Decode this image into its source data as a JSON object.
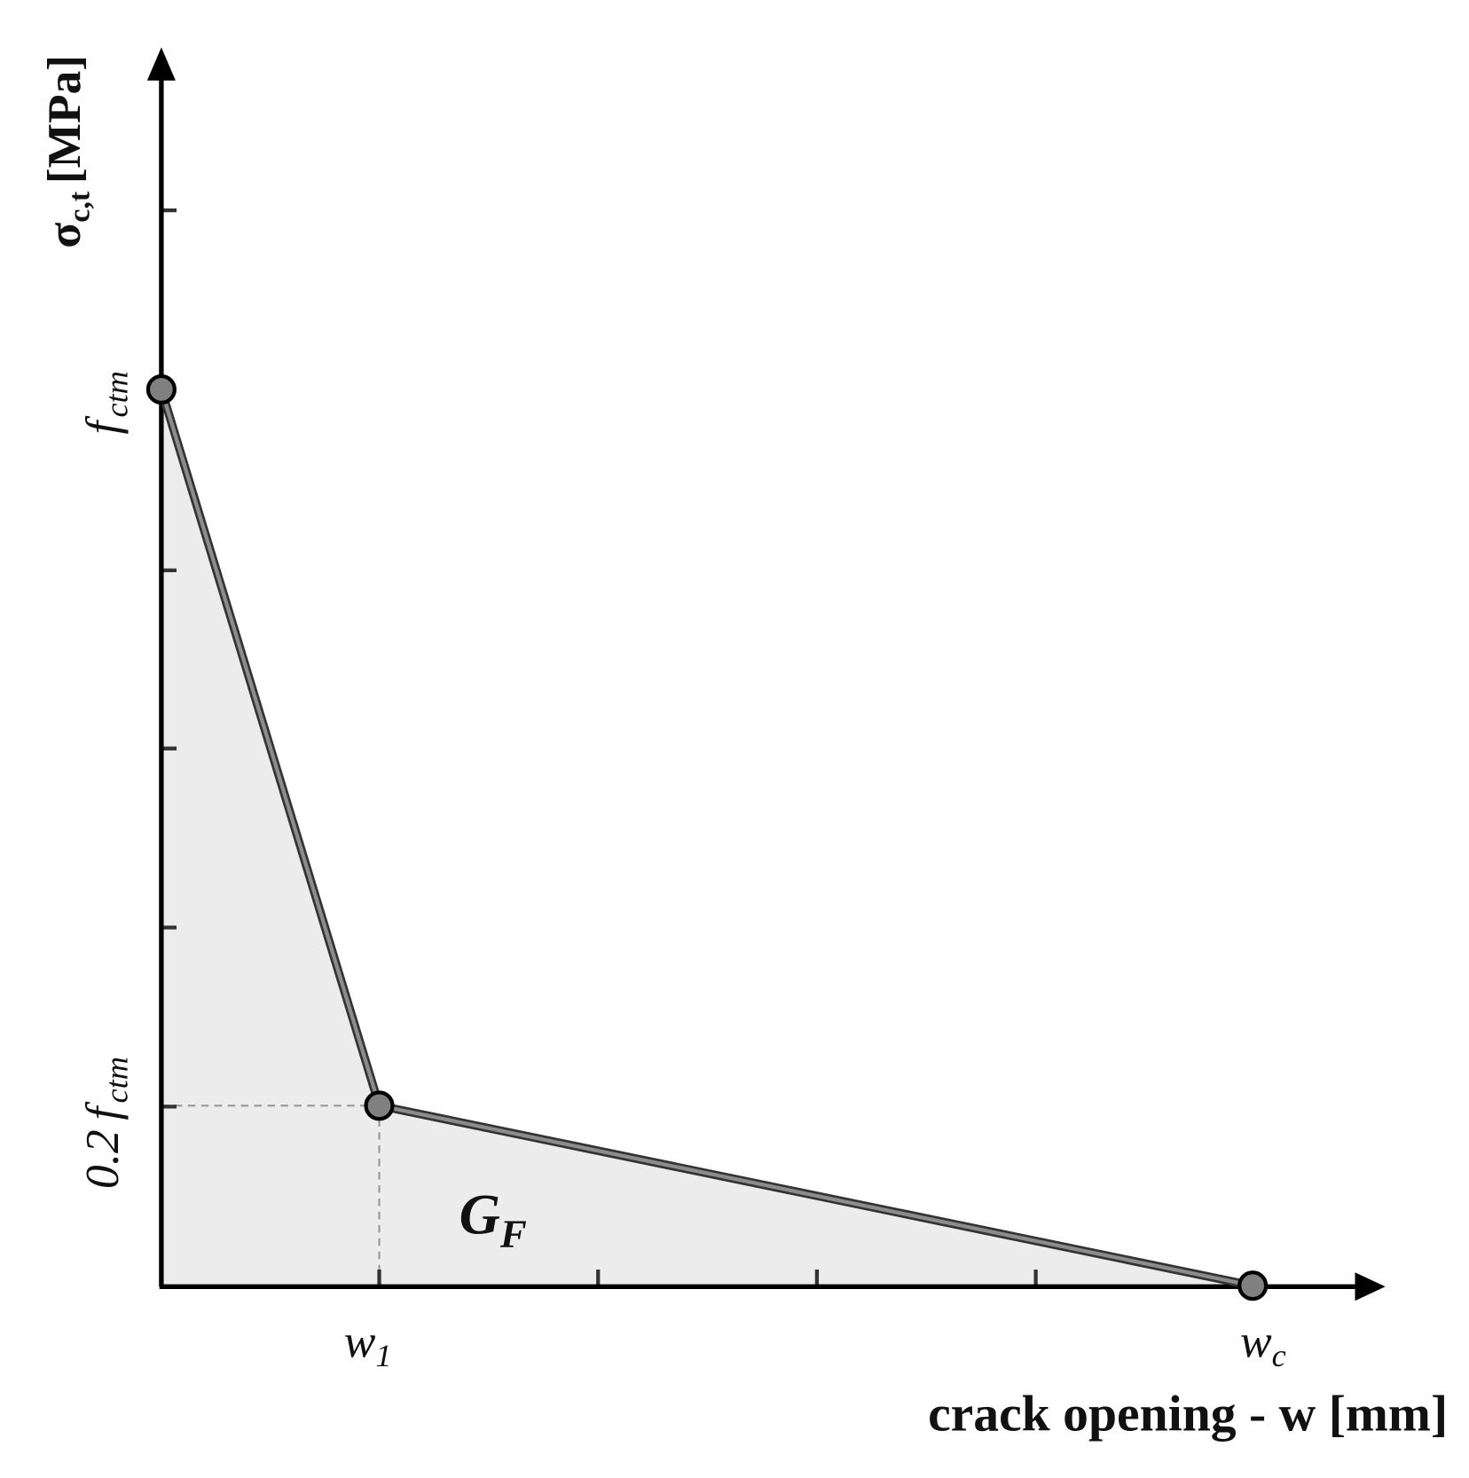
{
  "y_axis": {
    "symbol": "σ",
    "subscript": "c,t",
    "unit": "[MPa]"
  },
  "x_axis": {
    "label": "crack opening - w [mm]"
  },
  "y_labels": [
    {
      "symbol": "f",
      "subscript": "ctm"
    },
    {
      "factor": "0.2",
      "symbol": "f",
      "subscript": "ctm"
    }
  ],
  "x_labels": [
    {
      "symbol": "w",
      "subscript": "1"
    },
    {
      "symbol": "w",
      "subscript": "c"
    }
  ],
  "area_label": {
    "symbol": "G",
    "subscript": "F"
  }
}
